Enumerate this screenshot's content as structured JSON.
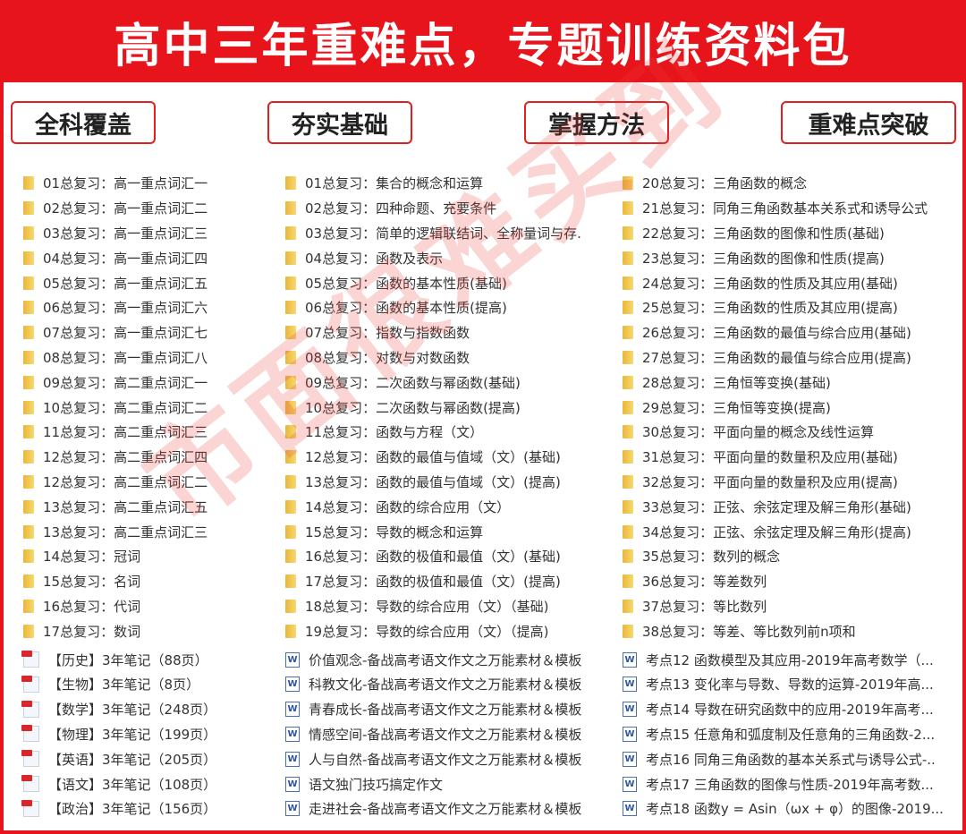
{
  "title": "高中三年重难点，专题训练资料包",
  "tags": [
    "全科覆盖",
    "夯实基础",
    "掌握方法",
    "重难点突破"
  ],
  "watermark": "市面很难买到",
  "colors": {
    "accent": "#e8141c"
  },
  "columns": [
    {
      "folders": [
        "01总复习：高一重点词汇一",
        "02总复习：高一重点词汇二",
        "03总复习：高一重点词汇三",
        "04总复习：高一重点词汇四",
        "05总复习：高一重点词汇五",
        "06总复习：高一重点词汇六",
        "07总复习：高一重点词汇七",
        "08总复习：高一重点词汇八",
        "09总复习：高二重点词汇一",
        "10总复习：高二重点词汇二",
        "11总复习：高二重点词汇三",
        "12总复习：高二重点词汇四",
        "12总复习：高二重点词汇二",
        "13总复习：高二重点词汇五",
        "13总复习：高二重点词汇三",
        "14总复习：冠词",
        "15总复习：名词",
        "16总复习：代词",
        "17总复习：数词"
      ],
      "file_icon": "pdf",
      "files": [
        "【历史】3年笔记（88页）",
        "【生物】3年笔记（8页）",
        "【数学】3年笔记（248页）",
        "【物理】3年笔记（199页）",
        "【英语】3年笔记（205页）",
        "【语文】3年笔记（108页）",
        "【政治】3年笔记（156页）"
      ]
    },
    {
      "folders": [
        "01总复习：集合的概念和运算",
        "02总复习：四种命题、充要条件",
        "03总复习：简单的逻辑联结词、全称量词与存.",
        "04总复习：函数及表示",
        "05总复习：函数的基本性质(基础)",
        "06总复习：函数的基本性质(提高)",
        "07总复习：指数与指数函数",
        "08总复习：对数与对数函数",
        "09总复习：二次函数与幂函数(基础)",
        "10总复习：二次函数与幂函数(提高)",
        "11总复习：函数与方程（文）",
        "12总复习：函数的最值与值域（文）(基础)",
        "13总复习：函数的最值与值域（文）(提高)",
        "14总复习：函数的综合应用（文）",
        "15总复习：导数的概念和运算",
        "16总复习：函数的极值和最值（文）(基础)",
        "17总复习：函数的极值和最值（文）(提高)",
        "18总复习：导数的综合应用（文）（基础)",
        "19总复习：导数的综合应用（文）（提高)"
      ],
      "file_icon": "word",
      "files": [
        "价值观念-备战高考语文作文之万能素材＆模板",
        "科教文化-备战高考语文作文之万能素材＆模板",
        "青春成长-备战高考语文作文之万能素材＆模板",
        "情感空间-备战高考语文作文之万能素材＆模板",
        "人与自然-备战高考语文作文之万能素材＆模板",
        "语文独门技巧搞定作文",
        "走进社会-备战高考语文作文之万能素材＆模板"
      ]
    },
    {
      "folders": [
        "20总复习：三角函数的概念",
        "21总复习：同角三角函数基本关系式和诱导公式",
        "22总复习：三角函数的图像和性质(基础)",
        "23总复习：三角函数的图像和性质(提高)",
        "24总复习：三角函数的性质及其应用(基础)",
        "25总复习：三角函数的性质及其应用(提高)",
        "26总复习：三角函数的最值与综合应用(基础)",
        "27总复习：三角函数的最值与综合应用(提高)",
        "28总复习：三角恒等变换(基础)",
        "29总复习：三角恒等变换(提高)",
        "30总复习：平面向量的概念及线性运算",
        "31总复习：平面向量的数量积及应用(基础)",
        "32总复习：平面向量的数量积及应用(提高)",
        "33总复习：正弦、余弦定理及解三角形(基础)",
        "34总复习：正弦、余弦定理及解三角形(提高)",
        "35总复习：数列的概念",
        "36总复习：等差数列",
        "37总复习：等比数列",
        "38总复习：等差、等比数列前n项和"
      ],
      "file_icon": "word",
      "files": [
        "考点12 函数模型及其应用-2019年高考数学（...",
        "考点13 变化率与导数、导数的运算-2019年高...",
        "考点14 导数在研究函数中的应用-2019年高考...",
        "考点15 任意角和弧度制及任意角的三角函数-2...",
        "考点16 同角三角函数的基本关系式与诱导公式-..",
        "考点17 三角函数的图像与性质-2019年高考数...",
        "考点18 函数y = Asin（ωx + φ）的图像-2019..."
      ]
    }
  ]
}
